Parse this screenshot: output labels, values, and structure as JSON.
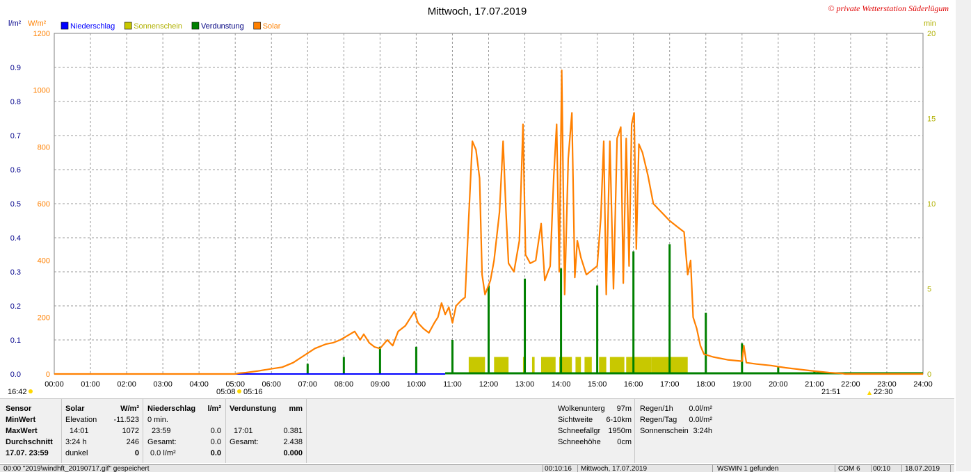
{
  "header": {
    "title": "Mittwoch, 17.07.2019",
    "copyright": "© private Wetterstation Süderlügum"
  },
  "axes": {
    "left1_unit": "l/m²",
    "left2_unit": "W/m²",
    "right_unit": "min",
    "precip_ticks": [
      "0.0",
      "0.1",
      "0.2",
      "0.3",
      "0.4",
      "0.5",
      "0.6",
      "0.7",
      "0.8",
      "0.9"
    ],
    "solar_ticks": [
      "0",
      "200",
      "400",
      "600",
      "800",
      "1000",
      "1200"
    ],
    "min_ticks": [
      "0",
      "5",
      "10",
      "15",
      "20"
    ],
    "time_ticks": [
      "00:00",
      "01:00",
      "02:00",
      "03:00",
      "04:00",
      "05:00",
      "06:00",
      "07:00",
      "08:00",
      "09:00",
      "10:00",
      "11:00",
      "12:00",
      "13:00",
      "14:00",
      "15:00",
      "16:00",
      "17:00",
      "18:00",
      "19:00",
      "20:00",
      "21:00",
      "22:00",
      "23:00",
      "24:00"
    ]
  },
  "legend": [
    {
      "name": "Niederschlag",
      "color": "#0000ff"
    },
    {
      "name": "Sonnenschein",
      "color": "#c8c800"
    },
    {
      "name": "Verdunstung",
      "color": "#008000"
    },
    {
      "name": "Solar",
      "color": "#ff8000"
    }
  ],
  "markers": {
    "moon_label": "16:42",
    "sunrise_left": "05:08",
    "sunrise_right": "05:16",
    "sunset_left": "21:51",
    "sunset_right": "22:30"
  },
  "colors": {
    "solar": "#ff8000",
    "evap": "#008000",
    "sunshine": "#c8c800",
    "precip": "#0000ff",
    "grid": "#999999",
    "precip_axis": "#00008b"
  },
  "chart_data": {
    "type": "line",
    "xlim": [
      0,
      24
    ],
    "ylim_solar": [
      0,
      1200
    ],
    "ylim_precip": [
      0,
      1.0
    ],
    "ylim_minutes": [
      0,
      20
    ],
    "grid": true,
    "legend_position": "top-left",
    "solar": [
      [
        0,
        0
      ],
      [
        5.0,
        0
      ],
      [
        5.1,
        3
      ],
      [
        5.3,
        5
      ],
      [
        5.6,
        10
      ],
      [
        6.0,
        18
      ],
      [
        6.3,
        24
      ],
      [
        6.6,
        40
      ],
      [
        6.9,
        65
      ],
      [
        7.2,
        90
      ],
      [
        7.5,
        105
      ],
      [
        7.7,
        110
      ],
      [
        7.9,
        120
      ],
      [
        8.1,
        135
      ],
      [
        8.3,
        150
      ],
      [
        8.45,
        120
      ],
      [
        8.55,
        140
      ],
      [
        8.7,
        110
      ],
      [
        8.85,
        95
      ],
      [
        9.0,
        90
      ],
      [
        9.2,
        120
      ],
      [
        9.35,
        100
      ],
      [
        9.5,
        150
      ],
      [
        9.7,
        170
      ],
      [
        9.85,
        200
      ],
      [
        9.95,
        220
      ],
      [
        10.05,
        180
      ],
      [
        10.2,
        160
      ],
      [
        10.35,
        145
      ],
      [
        10.5,
        180
      ],
      [
        10.6,
        200
      ],
      [
        10.7,
        250
      ],
      [
        10.8,
        210
      ],
      [
        10.9,
        235
      ],
      [
        11.0,
        180
      ],
      [
        11.1,
        240
      ],
      [
        11.25,
        260
      ],
      [
        11.35,
        270
      ],
      [
        11.45,
        550
      ],
      [
        11.55,
        820
      ],
      [
        11.65,
        790
      ],
      [
        11.75,
        690
      ],
      [
        11.82,
        350
      ],
      [
        11.9,
        280
      ],
      [
        12.05,
        330
      ],
      [
        12.15,
        400
      ],
      [
        12.3,
        570
      ],
      [
        12.4,
        820
      ],
      [
        12.48,
        570
      ],
      [
        12.55,
        390
      ],
      [
        12.7,
        360
      ],
      [
        12.85,
        470
      ],
      [
        12.95,
        880
      ],
      [
        13.02,
        420
      ],
      [
        13.15,
        390
      ],
      [
        13.3,
        400
      ],
      [
        13.45,
        530
      ],
      [
        13.55,
        330
      ],
      [
        13.7,
        380
      ],
      [
        13.8,
        700
      ],
      [
        13.88,
        880
      ],
      [
        13.95,
        360
      ],
      [
        14.02,
        1070
      ],
      [
        14.1,
        280
      ],
      [
        14.2,
        760
      ],
      [
        14.3,
        920
      ],
      [
        14.38,
        340
      ],
      [
        14.45,
        470
      ],
      [
        14.55,
        410
      ],
      [
        14.7,
        350
      ],
      [
        14.8,
        360
      ],
      [
        15.0,
        380
      ],
      [
        15.1,
        550
      ],
      [
        15.18,
        820
      ],
      [
        15.25,
        280
      ],
      [
        15.35,
        820
      ],
      [
        15.45,
        300
      ],
      [
        15.55,
        830
      ],
      [
        15.65,
        870
      ],
      [
        15.72,
        320
      ],
      [
        15.8,
        830
      ],
      [
        15.88,
        380
      ],
      [
        15.95,
        880
      ],
      [
        16.02,
        920
      ],
      [
        16.08,
        440
      ],
      [
        16.15,
        810
      ],
      [
        16.25,
        780
      ],
      [
        16.4,
        700
      ],
      [
        16.55,
        600
      ],
      [
        16.7,
        580
      ],
      [
        16.85,
        560
      ],
      [
        17.0,
        540
      ],
      [
        17.2,
        520
      ],
      [
        17.4,
        500
      ],
      [
        17.5,
        350
      ],
      [
        17.58,
        400
      ],
      [
        17.65,
        200
      ],
      [
        17.75,
        160
      ],
      [
        17.85,
        100
      ],
      [
        17.95,
        70
      ],
      [
        18.2,
        60
      ],
      [
        18.6,
        50
      ],
      [
        19.0,
        45
      ],
      [
        19.05,
        100
      ],
      [
        19.12,
        40
      ],
      [
        19.4,
        35
      ],
      [
        19.8,
        30
      ],
      [
        20.2,
        22
      ],
      [
        20.6,
        16
      ],
      [
        21.0,
        10
      ],
      [
        21.4,
        5
      ],
      [
        21.75,
        2
      ],
      [
        21.85,
        0
      ],
      [
        24,
        0
      ]
    ],
    "evap_bars": [
      [
        7.0,
        0.03
      ],
      [
        8.0,
        0.05
      ],
      [
        9.0,
        0.08
      ],
      [
        10.0,
        0.08
      ],
      [
        11.0,
        0.1
      ],
      [
        12.0,
        0.26
      ],
      [
        13.0,
        0.28
      ],
      [
        14.0,
        0.31
      ],
      [
        15.0,
        0.26
      ],
      [
        16.0,
        0.36
      ],
      [
        17.0,
        0.381
      ],
      [
        18.0,
        0.18
      ],
      [
        19.0,
        0.09
      ],
      [
        20.0,
        0.02
      ],
      [
        21.0,
        0.01
      ],
      [
        22.0,
        0.005
      ],
      [
        23.0,
        0.005
      ]
    ],
    "sunshine_segments": [
      [
        11.45,
        11.9
      ],
      [
        12.15,
        12.55
      ],
      [
        12.95,
        13.02
      ],
      [
        13.2,
        13.27
      ],
      [
        13.45,
        13.85
      ],
      [
        13.95,
        14.3
      ],
      [
        14.4,
        14.55
      ],
      [
        14.65,
        14.85
      ],
      [
        15.05,
        15.25
      ],
      [
        15.35,
        15.75
      ],
      [
        15.8,
        16.5
      ],
      [
        16.5,
        17.5
      ]
    ],
    "sunshine_level_min": 1.0,
    "precip_total": 0.0
  },
  "panel": {
    "sensor": {
      "rows": [
        "Sensor",
        "MinWert",
        "MaxWert",
        "Durchschnitt",
        "17.07. 23:59"
      ]
    },
    "solar": {
      "header": "Solar",
      "unit": "W/m²",
      "rows": [
        [
          "Elevation",
          "-11.523"
        ],
        [
          "14:01",
          "1072"
        ],
        [
          "3:24 h",
          "246"
        ],
        [
          "dunkel",
          "0"
        ]
      ]
    },
    "precip": {
      "header": "Niederschlag",
      "unit": "l/m²",
      "rows": [
        [
          "0 min.",
          ""
        ],
        [
          "23:59",
          "0.0"
        ],
        [
          "Gesamt:",
          "0.0"
        ],
        [
          "0.0 l/m²",
          "0.0"
        ]
      ]
    },
    "evap": {
      "header": "Verdunstung",
      "unit": "mm",
      "rows": [
        [
          "",
          ""
        ],
        [
          "17:01",
          "0.381"
        ],
        [
          "Gesamt:",
          "2.438"
        ],
        [
          "",
          "0.000"
        ]
      ]
    },
    "weather1": [
      [
        "Wolkenunterg",
        "97m"
      ],
      [
        "Sichtweite",
        "6-10km"
      ],
      [
        "Schneefallgr",
        "1950m"
      ],
      [
        "Schneehöhe",
        "0cm"
      ]
    ],
    "weather2": [
      [
        "Regen/1h",
        "0.0l/m²"
      ],
      [
        "Regen/Tag",
        "0.0l/m²"
      ],
      [
        "Sonnenschein",
        "3:24h"
      ]
    ]
  },
  "statusbar": {
    "file": "00:00 \"2019\\windhft_20190717.gif\" gespeichert",
    "time1": "00:10:16",
    "date": "Mittwoch, 17.07.2019",
    "device": "WSWIN 1 gefunden",
    "com": "COM 6",
    "time2": "00:10",
    "date2": "18.07.2019"
  }
}
